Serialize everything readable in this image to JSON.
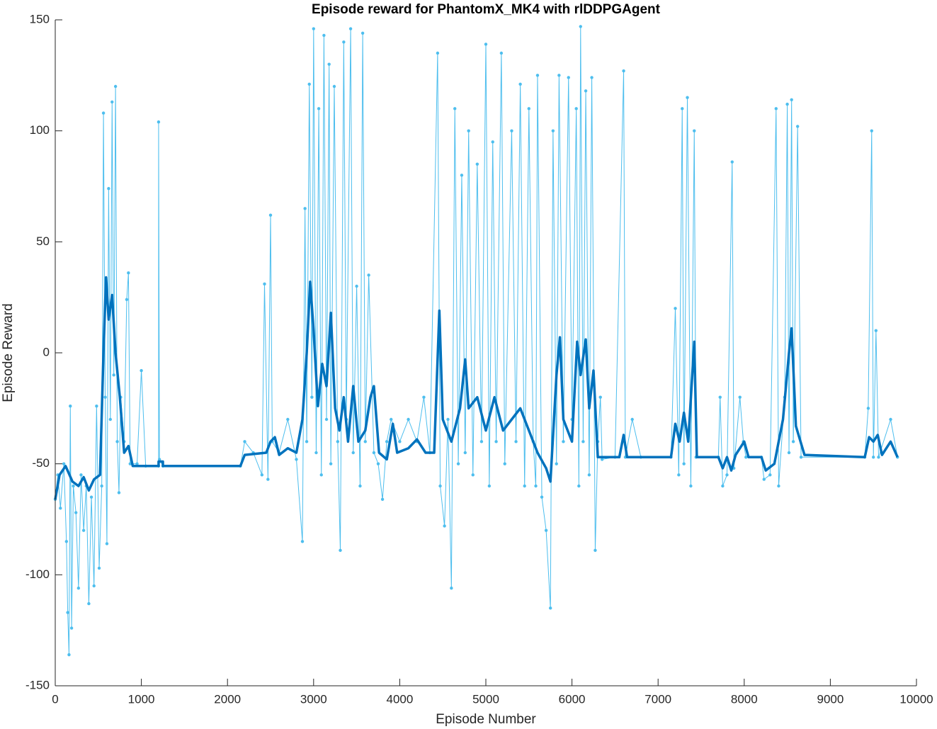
{
  "chart_data": {
    "type": "line",
    "title": "Episode reward for PhantomX_MK4 with rlDDPGAgent",
    "x_label": "Episode Number",
    "y_label": "Episode Reward",
    "xlim": [
      0,
      10000
    ],
    "ylim": [
      -150,
      150
    ],
    "xticks": [
      0,
      1000,
      2000,
      3000,
      4000,
      5000,
      6000,
      7000,
      8000,
      9000,
      10000
    ],
    "yticks": [
      -150,
      -100,
      -50,
      0,
      50,
      100,
      150
    ],
    "grid": false,
    "series": [
      {
        "color": "#4dbeee",
        "marker": true,
        "width": 1,
        "x": [
          0,
          30,
          60,
          100,
          130,
          145,
          160,
          175,
          190,
          210,
          240,
          270,
          300,
          330,
          360,
          390,
          420,
          450,
          480,
          510,
          540,
          560,
          580,
          600,
          620,
          640,
          660,
          680,
          700,
          720,
          740,
          760,
          800,
          830,
          850,
          870,
          950,
          1000,
          1050,
          1200,
          1200,
          1210,
          1250,
          2150,
          2200,
          2300,
          2400,
          2430,
          2470,
          2500,
          2520,
          2600,
          2700,
          2800,
          2870,
          2900,
          2920,
          2950,
          2980,
          3000,
          3030,
          3060,
          3090,
          3120,
          3150,
          3180,
          3200,
          3240,
          3280,
          3310,
          3350,
          3380,
          3430,
          3460,
          3500,
          3540,
          3570,
          3600,
          3640,
          3700,
          3750,
          3800,
          3850,
          3900,
          4000,
          4100,
          4200,
          4280,
          4350,
          4440,
          4470,
          4520,
          4560,
          4600,
          4640,
          4680,
          4720,
          4760,
          4800,
          4850,
          4900,
          4950,
          5000,
          5040,
          5080,
          5120,
          5180,
          5220,
          5300,
          5350,
          5400,
          5450,
          5500,
          5550,
          5580,
          5600,
          5650,
          5700,
          5750,
          5780,
          5820,
          5850,
          5900,
          5960,
          6000,
          6050,
          6080,
          6100,
          6130,
          6160,
          6200,
          6230,
          6270,
          6300,
          6330,
          6350,
          6500,
          6600,
          6620,
          6700,
          6800,
          7150,
          7200,
          7240,
          7280,
          7300,
          7340,
          7380,
          7420,
          7440,
          7700,
          7720,
          7750,
          7800,
          7860,
          7880,
          7950,
          7990,
          8020,
          8200,
          8230,
          8300,
          8370,
          8400,
          8470,
          8500,
          8520,
          8550,
          8570,
          8620,
          8660,
          9400,
          9440,
          9480,
          9500,
          9530,
          9560,
          9700,
          9780
        ],
        "values": [
          -66,
          -55,
          -70,
          -50,
          -85,
          -117,
          -136,
          -24,
          -124,
          -60,
          -72,
          -106,
          -55,
          -80,
          -60,
          -113,
          -65,
          -105,
          -24,
          -97,
          -60,
          108,
          -20,
          -86,
          74,
          -30,
          113,
          -10,
          120,
          -40,
          -63,
          -20,
          -40,
          24,
          36,
          -50,
          -50,
          -8,
          -51,
          -51,
          104,
          -48,
          -51,
          -51,
          -40,
          -45,
          -55,
          31,
          -57,
          62,
          -40,
          -45,
          -30,
          -48,
          -85,
          65,
          -40,
          121,
          -20,
          146,
          -45,
          110,
          -55,
          143,
          -30,
          130,
          -50,
          120,
          -40,
          -89,
          140,
          -30,
          146,
          -45,
          30,
          -60,
          144,
          -40,
          35,
          -45,
          -50,
          -66,
          -40,
          -30,
          -40,
          -30,
          -40,
          -20,
          -45,
          135,
          -60,
          -78,
          -30,
          -106,
          110,
          -50,
          80,
          -45,
          100,
          -55,
          85,
          -40,
          139,
          -60,
          95,
          -40,
          135,
          -50,
          100,
          -40,
          121,
          -60,
          110,
          -40,
          -60,
          125,
          -65,
          -80,
          -115,
          100,
          -50,
          125,
          -40,
          124,
          -30,
          110,
          -60,
          147,
          -40,
          118,
          -55,
          124,
          -89,
          -40,
          -20,
          -48,
          -47,
          127,
          -47,
          -30,
          -47,
          -47,
          20,
          -55,
          110,
          -50,
          115,
          -60,
          100,
          -47,
          -47,
          -20,
          -60,
          -55,
          86,
          -52,
          -20,
          -40,
          -47,
          -47,
          -57,
          -55,
          110,
          -60,
          -20,
          112,
          -45,
          114,
          -40,
          102,
          -47,
          -47,
          -25,
          100,
          -47,
          10,
          -47,
          -30,
          -47
        ]
      },
      {
        "color": "#0072bd",
        "marker": false,
        "width": 3.5,
        "x": [
          0,
          50,
          120,
          200,
          270,
          330,
          390,
          450,
          520,
          560,
          590,
          620,
          660,
          700,
          750,
          800,
          850,
          900,
          1200,
          1200,
          1250,
          1250,
          2150,
          2200,
          2450,
          2500,
          2550,
          2600,
          2700,
          2800,
          2870,
          2920,
          2960,
          3000,
          3050,
          3100,
          3150,
          3200,
          3250,
          3300,
          3350,
          3400,
          3460,
          3520,
          3600,
          3660,
          3700,
          3760,
          3850,
          3920,
          3970,
          4100,
          4200,
          4300,
          4400,
          4460,
          4500,
          4600,
          4700,
          4760,
          4800,
          4900,
          5000,
          5100,
          5200,
          5300,
          5400,
          5500,
          5600,
          5700,
          5750,
          5820,
          5860,
          5900,
          6000,
          6060,
          6100,
          6160,
          6200,
          6250,
          6300,
          6550,
          6600,
          6640,
          7150,
          7200,
          7250,
          7300,
          7350,
          7420,
          7450,
          7700,
          7750,
          7800,
          7850,
          7900,
          8000,
          8050,
          8200,
          8250,
          8350,
          8450,
          8520,
          8550,
          8600,
          8700,
          9400,
          9450,
          9500,
          9550,
          9600,
          9700,
          9780
        ],
        "values": [
          -66,
          -55,
          -51,
          -58,
          -60,
          -56,
          -62,
          -57,
          -55,
          0,
          34,
          15,
          26,
          0,
          -20,
          -45,
          -42,
          -51,
          -51,
          -49,
          -49,
          -51,
          -51,
          -46,
          -45,
          -40,
          -38,
          -46,
          -43,
          -45,
          -30,
          0,
          32,
          10,
          -24,
          -5,
          -15,
          18,
          -25,
          -35,
          -20,
          -40,
          -15,
          -40,
          -35,
          -20,
          -15,
          -45,
          -48,
          -32,
          -45,
          -43,
          -39,
          -45,
          -45,
          19,
          -30,
          -40,
          -25,
          -3,
          -25,
          -20,
          -35,
          -20,
          -35,
          -30,
          -25,
          -35,
          -45,
          -52,
          -58,
          -10,
          7,
          -30,
          -40,
          5,
          -10,
          6,
          -25,
          -8,
          -47,
          -47,
          -37,
          -47,
          -47,
          -32,
          -40,
          -27,
          -40,
          5,
          -47,
          -47,
          -52,
          -47,
          -53,
          -46,
          -40,
          -47,
          -47,
          -53,
          -50,
          -30,
          0,
          11,
          -33,
          -46,
          -47,
          -38,
          -40,
          -37,
          -46,
          -40,
          -47
        ]
      }
    ]
  }
}
